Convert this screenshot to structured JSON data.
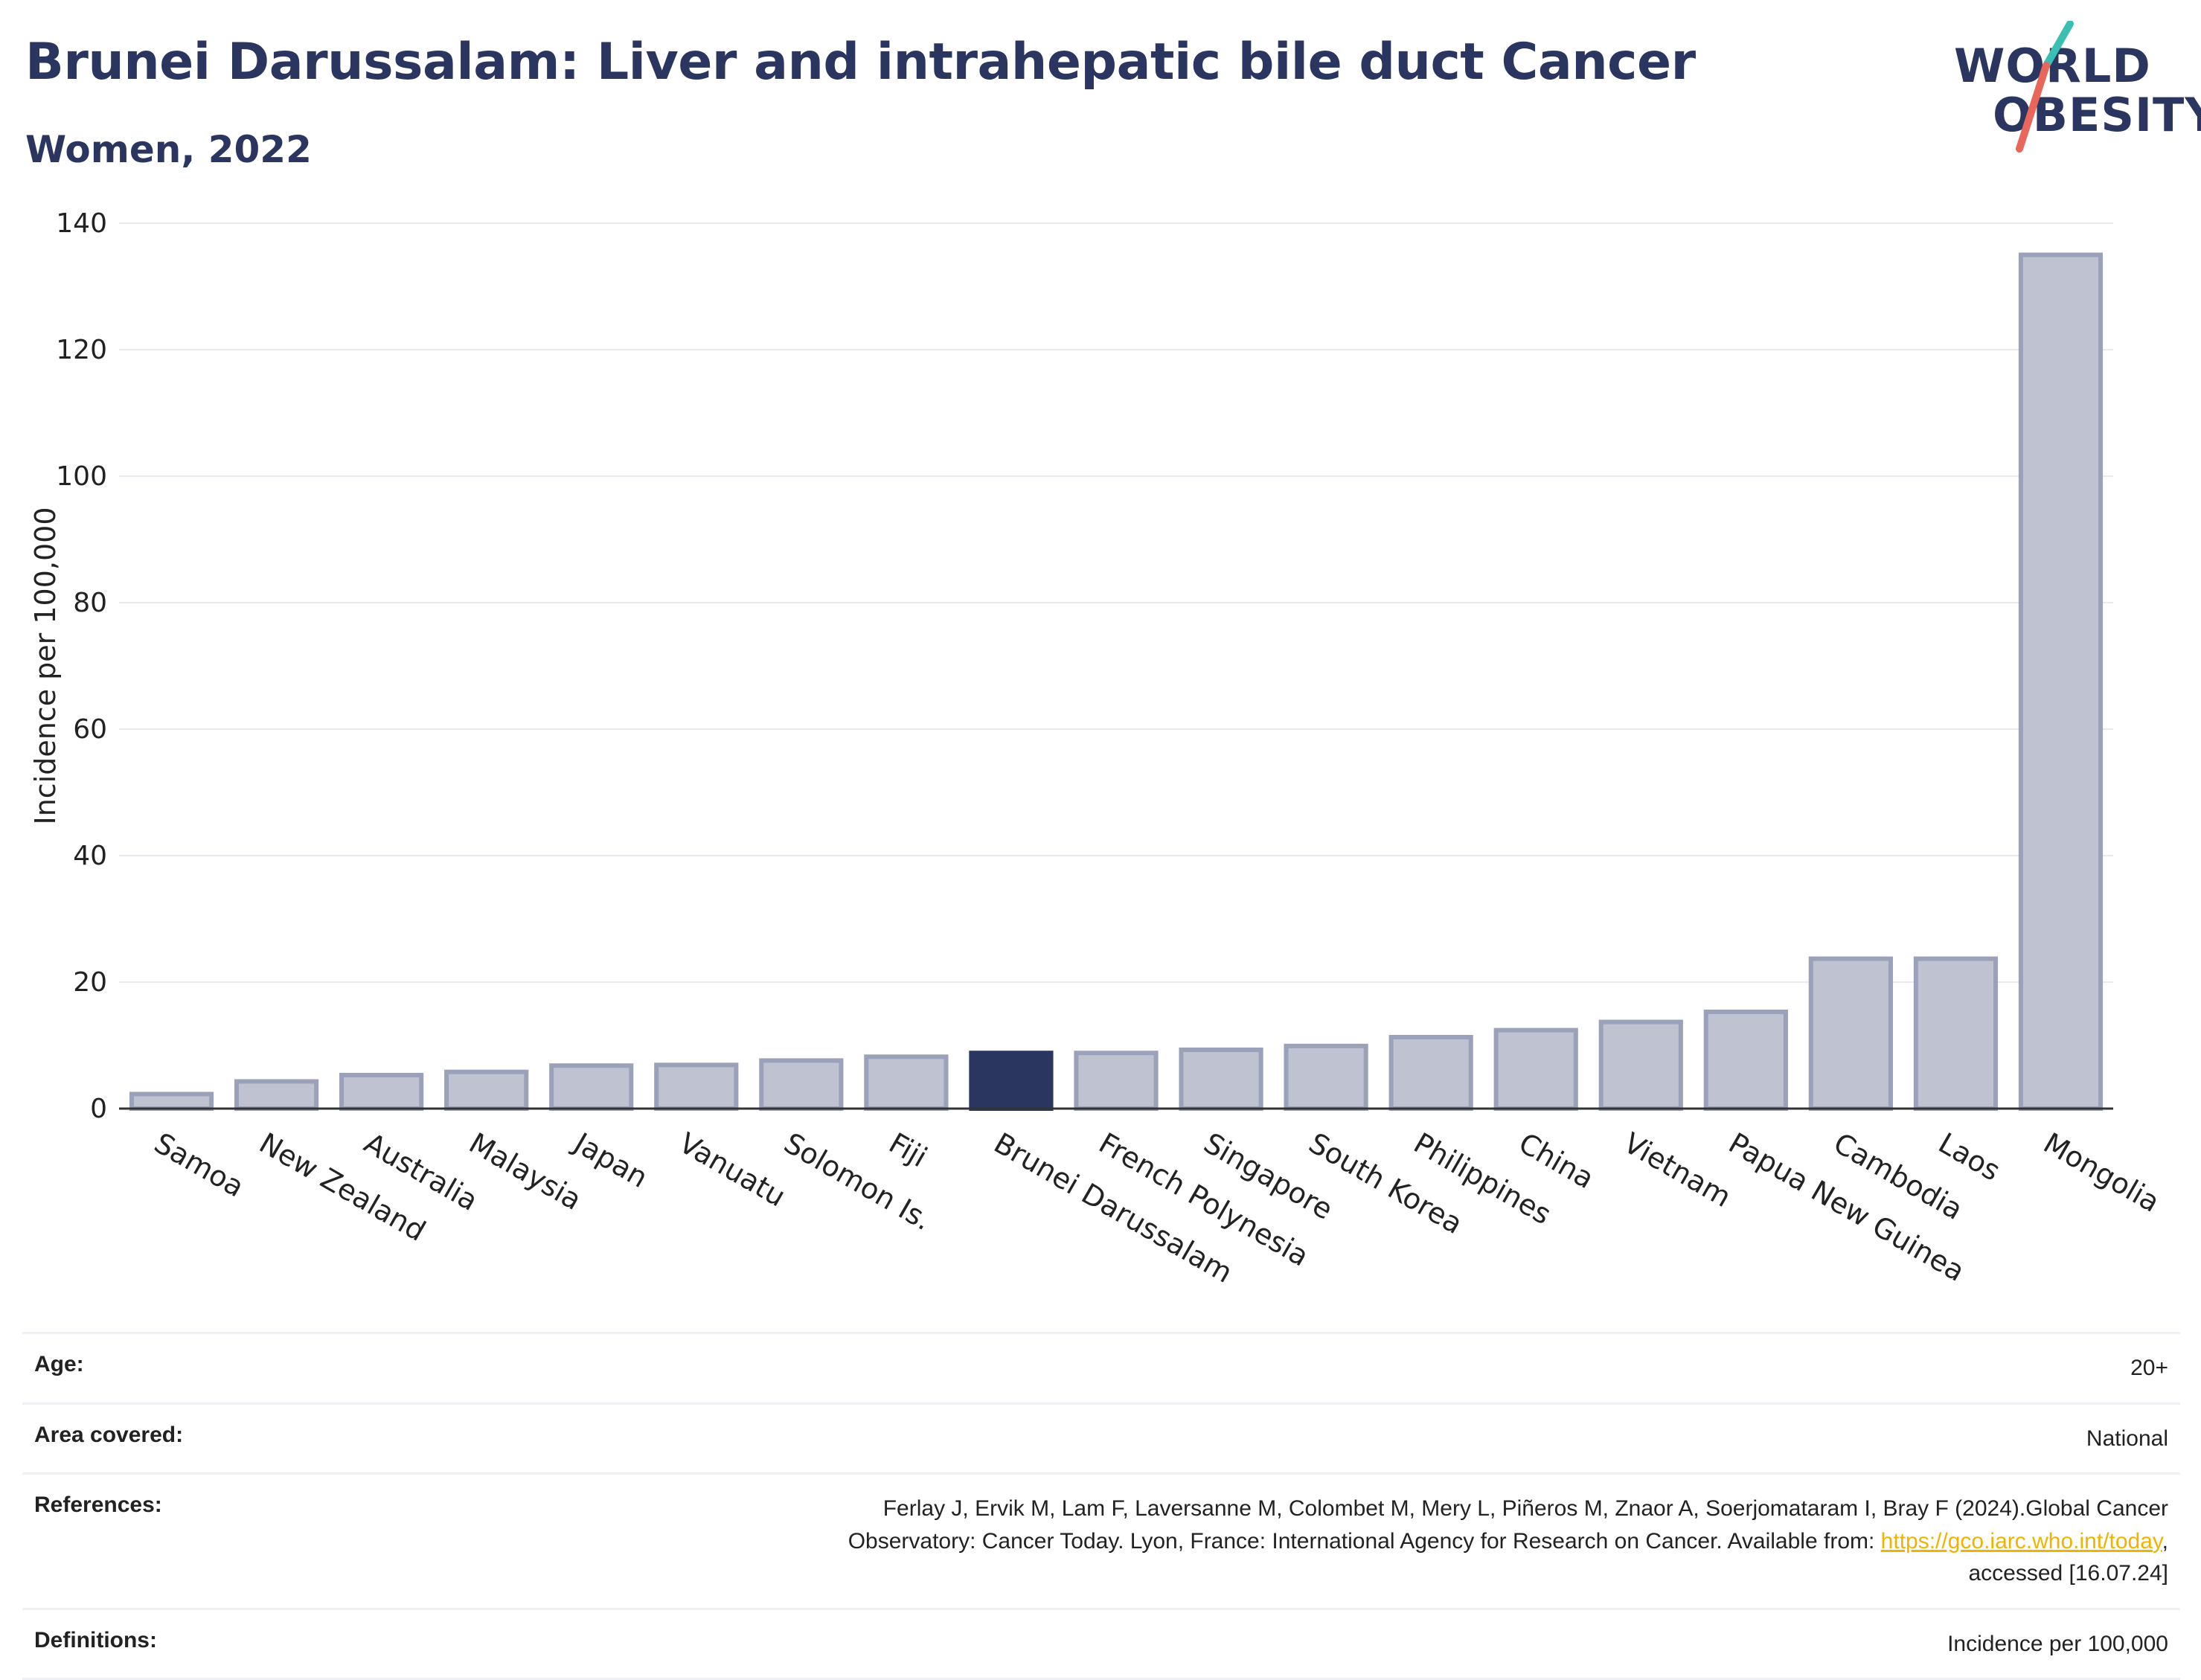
{
  "header": {
    "title": "Brunei Darussalam: Liver and intrahepatic bile duct Cancer",
    "subtitle": "Women, 2022"
  },
  "logo": {
    "line1": "WORLD",
    "line2": "OBESITY"
  },
  "colors": {
    "highlight": "#2b3660",
    "bar": "#bfc3d1",
    "bar_border": "#9aa1b8",
    "title": "#2b3660",
    "logo_slash_top": "#3bbfb5",
    "logo_slash_bottom": "#e8665a",
    "link": "#f0b400"
  },
  "chart_data": {
    "type": "bar",
    "ylabel": "Incidence per 100,000",
    "xlabel": "",
    "ylim": [
      0,
      140
    ],
    "yticks": [
      0,
      20,
      40,
      60,
      80,
      100,
      120,
      140
    ],
    "grid": true,
    "highlight": "Brunei Darussalam",
    "categories": [
      "Samoa",
      "New Zealand",
      "Australia",
      "Malaysia",
      "Japan",
      "Vanuatu",
      "Solomon Is.",
      "Fiji",
      "Brunei Darussalam",
      "French Polynesia",
      "Singapore",
      "South Korea",
      "Philippines",
      "China",
      "Vietnam",
      "Papua New Guinea",
      "Cambodia",
      "Laos",
      "Mongolia"
    ],
    "values": [
      2.3,
      4.3,
      5.3,
      5.8,
      6.8,
      6.9,
      7.6,
      8.2,
      8.8,
      8.8,
      9.3,
      9.9,
      11.3,
      12.4,
      13.7,
      15.3,
      23.7,
      23.7,
      135.0
    ]
  },
  "meta": {
    "age_label": "Age:",
    "age_value": "20+",
    "area_label": "Area covered:",
    "area_value": "National",
    "refs_label": "References:",
    "refs_line1": "Ferlay J, Ervik M, Lam F, Laversanne M, Colombet M, Mery L, Piñeros M, Znaor A, Soerjomataram I, Bray F (2024).Global Cancer",
    "refs_line2_pre": "Observatory: Cancer Today. Lyon, France: International Agency for Research on Cancer. Available from: ",
    "refs_link": "https://gco.iarc.who.int/today",
    "refs_line2_post": ",",
    "refs_line3": "accessed [16.07.24]",
    "defs_label": "Definitions:",
    "defs_value": "Incidence per 100,000"
  }
}
